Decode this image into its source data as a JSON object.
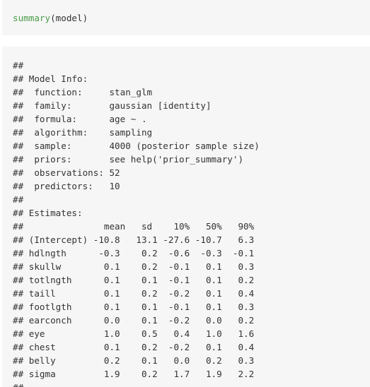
{
  "input": {
    "function": "summary",
    "open_paren": "(",
    "argument": "model",
    "close_paren": ")"
  },
  "output": {
    "lines": [
      "##",
      "## Model Info:",
      "##  function:     stan_glm",
      "##  family:       gaussian [identity]",
      "##  formula:      age ~ .",
      "##  algorithm:    sampling",
      "##  sample:       4000 (posterior sample size)",
      "##  priors:       see help('prior_summary')",
      "##  observations: 52",
      "##  predictors:   10",
      "##",
      "## Estimates:",
      "##               mean   sd    10%   50%   90%",
      "## (Intercept) -10.8   13.1 -27.6 -10.7   6.3",
      "## hdlngth      -0.3    0.2  -0.6  -0.3  -0.1",
      "## skullw        0.1    0.2  -0.1   0.1   0.3",
      "## totlngth      0.1    0.1  -0.1   0.1   0.2",
      "## taill         0.1    0.2  -0.2   0.1   0.4",
      "## footlgth      0.1    0.1  -0.1   0.1   0.3",
      "## earconch      0.0    0.1  -0.2   0.0   0.2",
      "## eye           1.0    0.5   0.4   1.0   1.6",
      "## chest         0.1    0.2  -0.2   0.1   0.4",
      "## belly         0.2    0.1   0.0   0.2   0.3",
      "## sigma         1.9    0.2   1.7   1.9   2.2",
      "##"
    ]
  }
}
